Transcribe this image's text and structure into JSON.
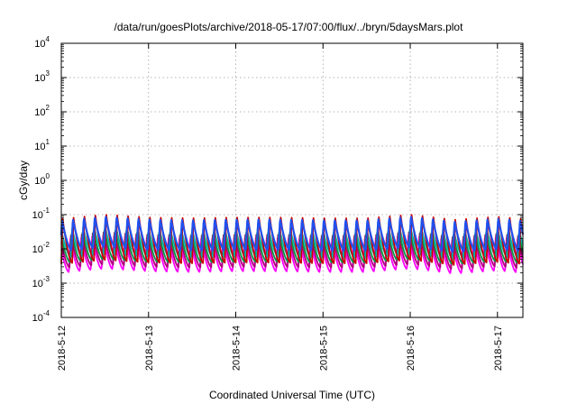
{
  "chart_data": {
    "type": "line",
    "title": "/data/run/goesPlots/archive/2018-05-17/07:00/flux/../bryn/5daysMars.plot",
    "xlabel": "Coordinated Universal Time (UTC)",
    "ylabel": "cGy/day",
    "yscale": "log",
    "ylim": [
      0.0001,
      10000
    ],
    "xlim": [
      "2018-05-12 00:00",
      "2018-05-17 07:00"
    ],
    "grid": true,
    "legend": "none",
    "x_tick_labels": [
      "2018-5-12",
      "2018-5-13",
      "2018-5-14",
      "2018-5-15",
      "2018-5-16",
      "2018-5-17"
    ],
    "y_tick_labels": [
      {
        "base": "10",
        "exp": "-4",
        "value": 0.0001
      },
      {
        "base": "10",
        "exp": "-3",
        "value": 0.001
      },
      {
        "base": "10",
        "exp": "-2",
        "value": 0.01
      },
      {
        "base": "10",
        "exp": "-1",
        "value": 0.1
      },
      {
        "base": "10",
        "exp": "0",
        "value": 1
      },
      {
        "base": "10",
        "exp": "1",
        "value": 10
      },
      {
        "base": "10",
        "exp": "2",
        "value": 100
      },
      {
        "base": "10",
        "exp": "3",
        "value": 1000
      },
      {
        "base": "10",
        "exp": "4",
        "value": 10000
      }
    ],
    "oscillation_period_hours": 3,
    "series": [
      {
        "color": "#cc0000",
        "peak": 0.085,
        "trough": 0.004
      },
      {
        "color": "#2050ee",
        "peak": 0.078,
        "trough": 0.0095
      },
      {
        "color": "#00b0b0",
        "peak": 0.04,
        "trough": 0.006
      },
      {
        "color": "#009944",
        "peak": 0.032,
        "trough": 0.0042
      },
      {
        "color": "#b0007a",
        "peak": 0.028,
        "trough": 0.003
      },
      {
        "color": "#ff00ff",
        "peak": 0.022,
        "trough": 0.0022
      }
    ],
    "daily_modulation": [
      {
        "x": "2018-05-12 00:00",
        "factor": 0.9
      },
      {
        "x": "2018-05-12 12:00",
        "factor": 1.2
      },
      {
        "x": "2018-05-13 00:00",
        "factor": 1.0
      },
      {
        "x": "2018-05-13 12:00",
        "factor": 0.95
      },
      {
        "x": "2018-05-14 00:00",
        "factor": 1.0
      },
      {
        "x": "2018-05-14 12:00",
        "factor": 1.0
      },
      {
        "x": "2018-05-15 00:00",
        "factor": 0.95
      },
      {
        "x": "2018-05-15 12:00",
        "factor": 0.95
      },
      {
        "x": "2018-05-16 00:00",
        "factor": 1.2
      },
      {
        "x": "2018-05-16 12:00",
        "factor": 0.85
      },
      {
        "x": "2018-05-17 00:00",
        "factor": 1.05
      },
      {
        "x": "2018-05-17 07:00",
        "factor": 0.9
      }
    ]
  }
}
